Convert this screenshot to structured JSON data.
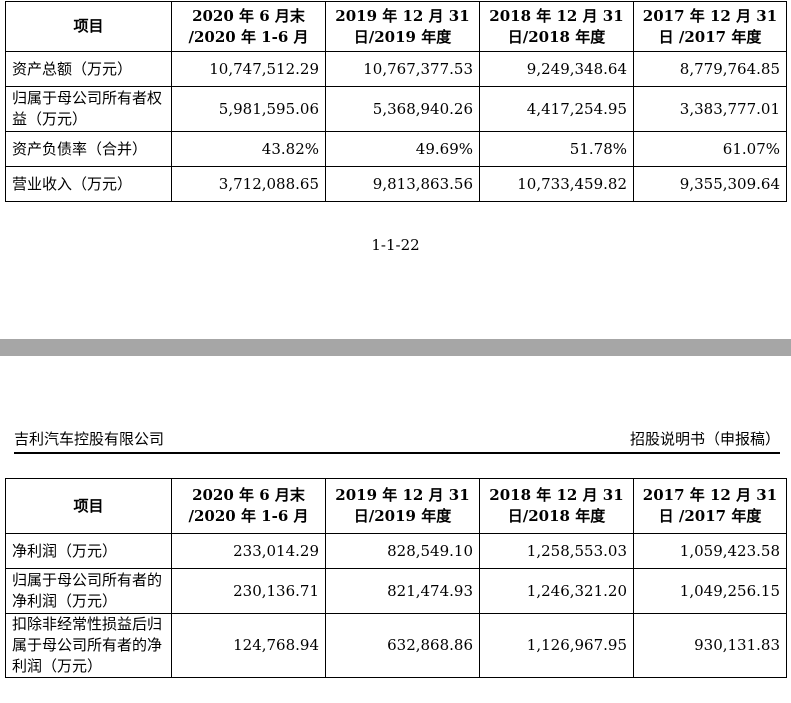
{
  "top_table": {
    "headers": [
      "项目",
      "2020 年 6 月末 /2020 年 1-6 月",
      "2019 年 12 月 31 日/2019 年度",
      "2018 年 12 月 31 日/2018 年度",
      "2017 年 12 月 31 日 /2017 年度"
    ],
    "rows": [
      {
        "label": "资产总额（万元）",
        "values": [
          "10,747,512.29",
          "10,767,377.53",
          "9,249,348.64",
          "8,779,764.85"
        ]
      },
      {
        "label": "归属于母公司所有者权益（万元）",
        "values": [
          "5,981,595.06",
          "5,368,940.26",
          "4,417,254.95",
          "3,383,777.01"
        ]
      },
      {
        "label": "资产负债率（合并）",
        "values": [
          "43.82%",
          "49.69%",
          "51.78%",
          "61.07%"
        ]
      },
      {
        "label": "营业收入（万元）",
        "values": [
          "3,712,088.65",
          "9,813,863.56",
          "10,733,459.82",
          "9,355,309.64"
        ]
      }
    ]
  },
  "page_number": "1-1-22",
  "doc_header": {
    "company": "吉利汽车控股有限公司",
    "doc_type": "招股说明书（申报稿）"
  },
  "bottom_table": {
    "headers": [
      "项目",
      "2020 年 6 月末 /2020 年 1-6 月",
      "2019 年 12 月 31 日/2019 年度",
      "2018 年 12 月 31 日/2018 年度",
      "2017 年 12 月 31 日 /2017 年度"
    ],
    "rows": [
      {
        "label": "净利润（万元）",
        "values": [
          "233,014.29",
          "828,549.10",
          "1,258,553.03",
          "1,059,423.58"
        ]
      },
      {
        "label": "归属于母公司所有者的净利润（万元）",
        "values": [
          "230,136.71",
          "821,474.93",
          "1,246,321.20",
          "1,049,256.15"
        ]
      },
      {
        "label": "扣除非经常性损益后归属于母公司所有者的净利润（万元）",
        "values": [
          "124,768.94",
          "632,868.86",
          "1,126,967.95",
          "930,131.83"
        ]
      }
    ]
  }
}
